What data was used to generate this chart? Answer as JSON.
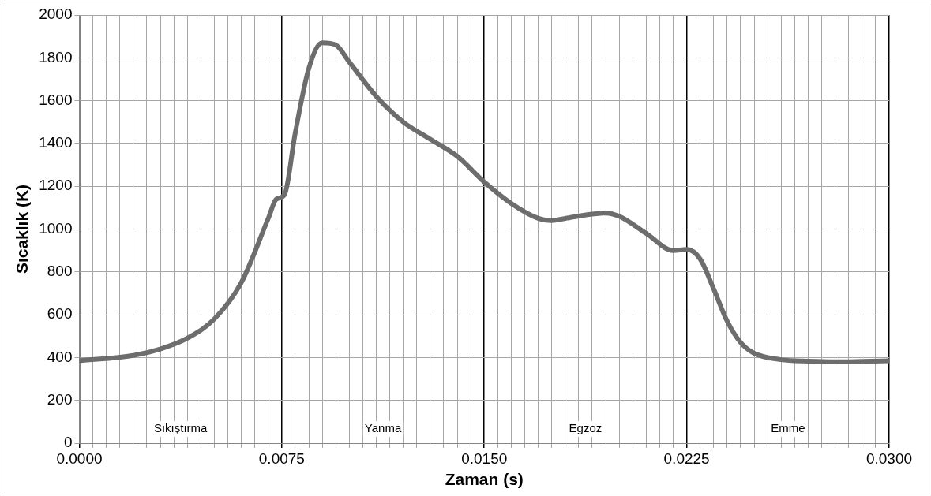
{
  "chart_data": {
    "type": "line",
    "xlabel": "Zaman (s)",
    "ylabel": "Sıcaklık (K)",
    "x": [
      0,
      0.002,
      0.003,
      0.004,
      0.005,
      0.006,
      0.007,
      0.0073,
      0.0076,
      0.008,
      0.0085,
      0.009,
      0.0095,
      0.01,
      0.011,
      0.012,
      0.013,
      0.014,
      0.015,
      0.016,
      0.017,
      0.0175,
      0.018,
      0.019,
      0.0195,
      0.02,
      0.021,
      0.022,
      0.0225,
      0.023,
      0.0235,
      0.024,
      0.0245,
      0.025,
      0.026,
      0.027,
      0.028,
      0.029,
      0.03
    ],
    "series": [
      {
        "color": "#6d6d6d",
        "values": [
          385,
          410,
          440,
          490,
          580,
          750,
          1050,
          1140,
          1160,
          1450,
          1750,
          1870,
          1860,
          1780,
          1620,
          1500,
          1420,
          1340,
          1220,
          1120,
          1050,
          1040,
          1050,
          1070,
          1075,
          1060,
          980,
          900,
          905,
          860,
          720,
          570,
          470,
          420,
          390,
          383,
          380,
          382,
          385
        ]
      }
    ],
    "xlim": [
      0,
      0.03
    ],
    "ylim": [
      0,
      2000
    ],
    "xticks": [
      {
        "value": 0,
        "label": "0.0000"
      },
      {
        "value": 0.0005,
        "label": null
      },
      {
        "value": 0.001,
        "label": null
      },
      {
        "value": 0.0015,
        "label": null
      },
      {
        "value": 0.002,
        "label": null
      },
      {
        "value": 0.0025,
        "label": null
      },
      {
        "value": 0.003,
        "label": null
      },
      {
        "value": 0.0035,
        "label": null
      },
      {
        "value": 0.004,
        "label": null
      },
      {
        "value": 0.0045,
        "label": null
      },
      {
        "value": 0.005,
        "label": null
      },
      {
        "value": 0.0055,
        "label": null
      },
      {
        "value": 0.006,
        "label": null
      },
      {
        "value": 0.0065,
        "label": null
      },
      {
        "value": 0.007,
        "label": null
      },
      {
        "value": 0.0075,
        "label": "0.0075"
      },
      {
        "value": 0.008,
        "label": null
      },
      {
        "value": 0.0085,
        "label": null
      },
      {
        "value": 0.009,
        "label": null
      },
      {
        "value": 0.0095,
        "label": null
      },
      {
        "value": 0.01,
        "label": null
      },
      {
        "value": 0.0105,
        "label": null
      },
      {
        "value": 0.011,
        "label": null
      },
      {
        "value": 0.0115,
        "label": null
      },
      {
        "value": 0.012,
        "label": null
      },
      {
        "value": 0.0125,
        "label": null
      },
      {
        "value": 0.013,
        "label": null
      },
      {
        "value": 0.0135,
        "label": null
      },
      {
        "value": 0.014,
        "label": null
      },
      {
        "value": 0.0145,
        "label": null
      },
      {
        "value": 0.015,
        "label": "0.0150"
      },
      {
        "value": 0.0155,
        "label": null
      },
      {
        "value": 0.016,
        "label": null
      },
      {
        "value": 0.0165,
        "label": null
      },
      {
        "value": 0.017,
        "label": null
      },
      {
        "value": 0.0175,
        "label": null
      },
      {
        "value": 0.018,
        "label": null
      },
      {
        "value": 0.0185,
        "label": null
      },
      {
        "value": 0.019,
        "label": null
      },
      {
        "value": 0.0195,
        "label": null
      },
      {
        "value": 0.02,
        "label": null
      },
      {
        "value": 0.0205,
        "label": null
      },
      {
        "value": 0.021,
        "label": null
      },
      {
        "value": 0.0215,
        "label": null
      },
      {
        "value": 0.022,
        "label": null
      },
      {
        "value": 0.0225,
        "label": "0.0225"
      },
      {
        "value": 0.023,
        "label": null
      },
      {
        "value": 0.0235,
        "label": null
      },
      {
        "value": 0.024,
        "label": null
      },
      {
        "value": 0.0245,
        "label": null
      },
      {
        "value": 0.025,
        "label": null
      },
      {
        "value": 0.0255,
        "label": null
      },
      {
        "value": 0.026,
        "label": null
      },
      {
        "value": 0.0265,
        "label": null
      },
      {
        "value": 0.027,
        "label": null
      },
      {
        "value": 0.0275,
        "label": null
      },
      {
        "value": 0.028,
        "label": null
      },
      {
        "value": 0.0285,
        "label": null
      },
      {
        "value": 0.029,
        "label": null
      },
      {
        "value": 0.0295,
        "label": null
      },
      {
        "value": 0.03,
        "label": "0.0300"
      }
    ],
    "yticks": [
      0,
      200,
      400,
      600,
      800,
      1000,
      1200,
      1400,
      1600,
      1800,
      2000
    ],
    "grid": true,
    "marker": "none",
    "line_style": "solid",
    "annotations": [
      "Sıkıştırma",
      "Yanma",
      "Egzoz",
      "Emme"
    ]
  }
}
